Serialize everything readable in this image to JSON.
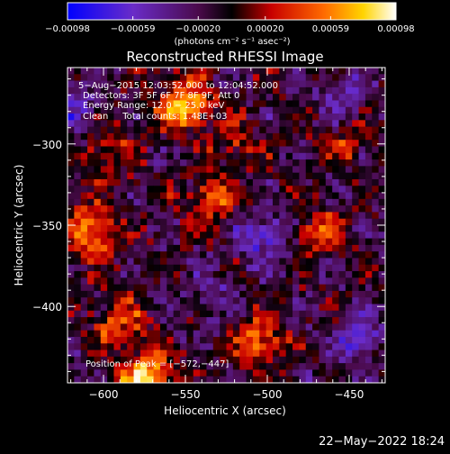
{
  "chart_data": {
    "type": "heatmap",
    "title": "Reconstructed RHESSI Image",
    "xlabel": "Heliocentric X (arcsec)",
    "ylabel": "Heliocentric Y (arcsec)",
    "xlim": [
      -622,
      -428
    ],
    "ylim": [
      -447,
      -253
    ],
    "x_ticks": [
      -600,
      -550,
      -500,
      -450
    ],
    "y_ticks": [
      -300,
      -350,
      -400
    ],
    "x_tick_labels": [
      "−600",
      "−550",
      "−500",
      "−450"
    ],
    "y_tick_labels": [
      "−300",
      "−350",
      "−400"
    ],
    "colorbar": {
      "min": -0.00098,
      "max": 0.00098,
      "tick_values": [
        -0.00098,
        -0.00059,
        -0.0002,
        0.0002,
        0.00059,
        0.00098
      ],
      "tick_labels": [
        "−0.00098",
        "−0.00059",
        "−0.00020",
        "0.00020",
        "0.00059",
        "0.00098"
      ],
      "units": "(photons cm⁻² s⁻¹ asec⁻²)",
      "colors": [
        "#0000ff",
        "#6a2cc8",
        "#4a0a4a",
        "#000000",
        "#c80000",
        "#ff6a00",
        "#ffd400",
        "#ffffff"
      ]
    },
    "hot_spots": [
      {
        "x": -575,
        "y": -445,
        "peak": 0.00098
      },
      {
        "x": -551,
        "y": -275,
        "peak": 0.00085
      },
      {
        "x": -606,
        "y": -354,
        "peak": 0.0008
      },
      {
        "x": -505,
        "y": -422,
        "peak": 0.00062
      },
      {
        "x": -535,
        "y": -335,
        "peak": 0.0005
      },
      {
        "x": -470,
        "y": -355,
        "peak": 0.00045
      },
      {
        "x": -595,
        "y": -305,
        "peak": 0.0004
      },
      {
        "x": -590,
        "y": -410,
        "peak": 0.0005
      },
      {
        "x": -520,
        "y": -300,
        "peak": 0.00035
      },
      {
        "x": -455,
        "y": -300,
        "peak": 0.0003
      }
    ],
    "cold_spots": [
      {
        "x": -502,
        "y": -357,
        "peak": -0.00055
      },
      {
        "x": -445,
        "y": -420,
        "peak": -0.0005
      },
      {
        "x": -620,
        "y": -280,
        "peak": -0.0004
      },
      {
        "x": -455,
        "y": -270,
        "peak": -0.00035
      },
      {
        "x": -535,
        "y": -395,
        "peak": -0.0003
      }
    ]
  },
  "annotations": {
    "line1": "5−Aug−2015 12:03:52.000 to 12:04:52.000",
    "line2": "Detectors: 3F 5F 6F 7F 8F 9F, Att 0",
    "line3": "Energy Range: 12.0 − 25.0 keV",
    "line4": "Clean     Total counts: 1.48E+03",
    "position_peak": "Position of Peak = [−572,−447]"
  },
  "footer": {
    "date": "22−May−2022 18:24"
  }
}
